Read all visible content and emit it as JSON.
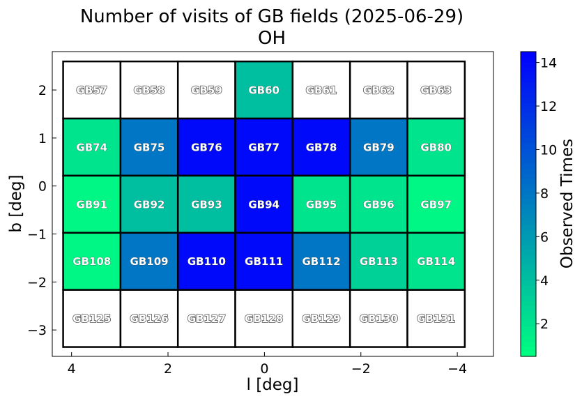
{
  "chart_data": {
    "type": "heatmap",
    "title": "Number of visits of GB fields (2025-06-29)",
    "subtitle": "OH",
    "xlabel": "l [deg]",
    "ylabel": "b [deg]",
    "xlim": [
      4.4,
      -4.75
    ],
    "ylim": [
      -3.55,
      2.8
    ],
    "xticks": [
      {
        "value": 4,
        "label": "4"
      },
      {
        "value": 2,
        "label": "2"
      },
      {
        "value": 0,
        "label": "0"
      },
      {
        "value": -2,
        "label": "−2"
      },
      {
        "value": -4,
        "label": "−4"
      }
    ],
    "yticks": [
      {
        "value": 2,
        "label": "2"
      },
      {
        "value": 1,
        "label": "1"
      },
      {
        "value": 0,
        "label": "0"
      },
      {
        "value": -1,
        "label": "−1"
      },
      {
        "value": -2,
        "label": "−2"
      },
      {
        "value": -3,
        "label": "−3"
      }
    ],
    "field_width_deg": 1.19,
    "field_height_deg": 1.19,
    "columns_l": [
      3.58,
      2.39,
      1.2,
      0.01,
      -1.18,
      -2.37,
      -3.56
    ],
    "rows_b": [
      2.0,
      0.81,
      -0.38,
      -1.57,
      -2.76
    ],
    "fields": [
      {
        "name": "GB57",
        "visits": 0
      },
      {
        "name": "GB58",
        "visits": 0
      },
      {
        "name": "GB59",
        "visits": 0
      },
      {
        "name": "GB60",
        "visits": 4
      },
      {
        "name": "GB61",
        "visits": 0
      },
      {
        "name": "GB62",
        "visits": 0
      },
      {
        "name": "GB63",
        "visits": 0
      },
      {
        "name": "GB74",
        "visits": 2
      },
      {
        "name": "GB75",
        "visits": 8
      },
      {
        "name": "GB76",
        "visits": 14
      },
      {
        "name": "GB77",
        "visits": 14
      },
      {
        "name": "GB78",
        "visits": 14
      },
      {
        "name": "GB79",
        "visits": 8
      },
      {
        "name": "GB80",
        "visits": 2
      },
      {
        "name": "GB91",
        "visits": 1
      },
      {
        "name": "GB92",
        "visits": 4
      },
      {
        "name": "GB93",
        "visits": 4
      },
      {
        "name": "GB94",
        "visits": 14
      },
      {
        "name": "GB95",
        "visits": 2
      },
      {
        "name": "GB96",
        "visits": 2
      },
      {
        "name": "GB97",
        "visits": 1
      },
      {
        "name": "GB108",
        "visits": 1
      },
      {
        "name": "GB109",
        "visits": 8
      },
      {
        "name": "GB110",
        "visits": 14
      },
      {
        "name": "GB111",
        "visits": 14
      },
      {
        "name": "GB112",
        "visits": 8
      },
      {
        "name": "GB113",
        "visits": 3
      },
      {
        "name": "GB114",
        "visits": 2
      },
      {
        "name": "GB125",
        "visits": 0
      },
      {
        "name": "GB126",
        "visits": 0
      },
      {
        "name": "GB127",
        "visits": 0
      },
      {
        "name": "GB128",
        "visits": 0
      },
      {
        "name": "GB129",
        "visits": 0
      },
      {
        "name": "GB130",
        "visits": 0
      },
      {
        "name": "GB131",
        "visits": 0
      }
    ],
    "colorbar": {
      "label": "Observed Times",
      "min": 0.5,
      "max": 14.5,
      "ticks": [
        {
          "value": 2,
          "label": "2"
        },
        {
          "value": 4,
          "label": "4"
        },
        {
          "value": 6,
          "label": "6"
        },
        {
          "value": 8,
          "label": "8"
        },
        {
          "value": 10,
          "label": "10"
        },
        {
          "value": 12,
          "label": "12"
        },
        {
          "value": 14,
          "label": "14"
        }
      ],
      "colormap": "winter_r",
      "color_low": "#00ff80",
      "color_high": "#0000ff",
      "empty_color": "#ffffff"
    }
  }
}
